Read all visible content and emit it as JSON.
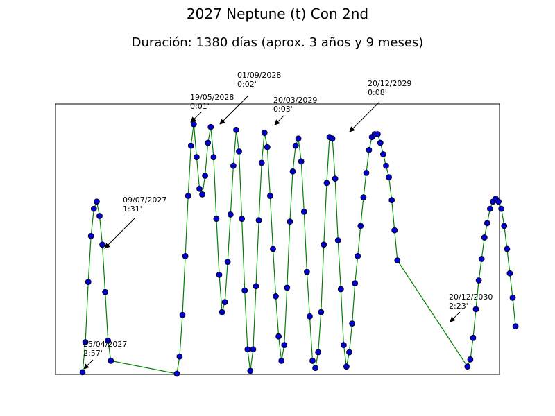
{
  "title": "2027 Neptune (t) Con 2nd",
  "subtitle": "Duración: 1380 días (aprox. 3 años y 9 meses)",
  "colors": {
    "line": "#008000",
    "marker_fill": "#0000cd",
    "marker_edge": "#000000"
  },
  "chart_data": {
    "type": "line",
    "title": "2027 Neptune (t) Con 2nd",
    "subtitle": "Duración: 1380 días (aprox. 3 años y 9 meses)",
    "xlabel": "",
    "ylabel": "",
    "axes_ticks": false,
    "grid": false,
    "xlim": [
      0,
      1380
    ],
    "ylim": [
      175,
      0
    ],
    "y_inverted": true,
    "y_unit": "arcminutes of orb (estimated)",
    "segments": [
      {
        "days": [
          0,
          9,
          18,
          27,
          36,
          45,
          54,
          63,
          72,
          81,
          90
        ],
        "orb": [
          174,
          153,
          111,
          79,
          60,
          55,
          65,
          85,
          118,
          152,
          166
        ]
      },
      {
        "days": [
          300,
          309,
          318,
          327,
          336,
          345,
          354,
          363,
          372,
          381,
          390,
          399,
          408,
          417,
          426,
          435,
          444,
          453,
          462,
          471,
          480,
          489,
          498,
          507,
          516,
          525,
          534,
          543,
          552,
          561,
          570,
          579,
          588,
          597,
          606,
          615,
          624,
          633,
          642,
          651,
          660,
          669,
          678,
          687,
          696,
          705,
          714,
          723,
          732,
          741,
          750,
          759,
          768,
          777,
          786,
          795,
          804,
          813,
          822,
          831,
          840,
          849,
          858,
          867,
          876,
          885,
          894,
          903,
          912,
          921,
          930,
          939,
          948,
          957,
          966,
          975,
          984,
          993,
          1002
        ],
        "orb": [
          175,
          163,
          134,
          93,
          51,
          16,
          1,
          24,
          46,
          50,
          37,
          14,
          3,
          24,
          67,
          106,
          132,
          125,
          97,
          64,
          30,
          5,
          20,
          67,
          117,
          158,
          173,
          158,
          114,
          68,
          28,
          7,
          17,
          51,
          88,
          121,
          149,
          166,
          155,
          115,
          69,
          34,
          16,
          11,
          27,
          62,
          104,
          135,
          166,
          171,
          160,
          132,
          85,
          42,
          10,
          11,
          39,
          82,
          116,
          155,
          170,
          160,
          140,
          112,
          93,
          72,
          52,
          35,
          19,
          10,
          8,
          8,
          14,
          22,
          30,
          38,
          54,
          75,
          96
        ]
      },
      {
        "days": [
          1225,
          1234,
          1243,
          1252,
          1261,
          1270,
          1279,
          1288,
          1297,
          1306,
          1315,
          1324,
          1333,
          1342,
          1351,
          1360,
          1369,
          1378
        ],
        "orb": [
          170,
          165,
          150,
          130,
          110,
          95,
          80,
          70,
          60,
          55,
          53,
          55,
          60,
          72,
          88,
          105,
          122,
          142
        ]
      }
    ],
    "annotations": [
      {
        "date": "25/04/2027",
        "orb": "2:57'"
      },
      {
        "date": "09/07/2027",
        "orb": "1:31'"
      },
      {
        "date": "19/05/2028",
        "orb": "0:01'"
      },
      {
        "date": "01/09/2028",
        "orb": "0:02'"
      },
      {
        "date": "20/03/2029",
        "orb": "0:03'"
      },
      {
        "date": "20/12/2029",
        "orb": "0:08'"
      },
      {
        "date": "20/12/2030",
        "orb": "2:23'"
      }
    ]
  }
}
